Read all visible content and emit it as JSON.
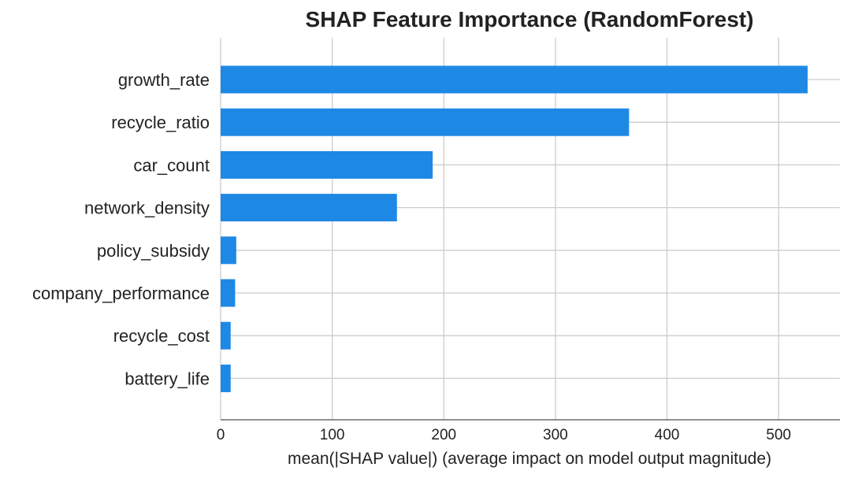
{
  "chart_data": {
    "type": "bar",
    "orientation": "horizontal",
    "title": "SHAP Feature Importance (RandomForest)",
    "xlabel": "mean(|SHAP value|) (average impact on model output magnitude)",
    "ylabel": "",
    "categories": [
      "growth_rate",
      "recycle_ratio",
      "car_count",
      "network_density",
      "policy_subsidy",
      "company_performance",
      "recycle_cost",
      "battery_life"
    ],
    "values": [
      526,
      366,
      190,
      158,
      14,
      13,
      9,
      9
    ],
    "xlim": [
      0,
      555
    ],
    "xticks": [
      0,
      100,
      200,
      300,
      400,
      500
    ],
    "grid": true,
    "bar_color": "#1E88E5"
  }
}
